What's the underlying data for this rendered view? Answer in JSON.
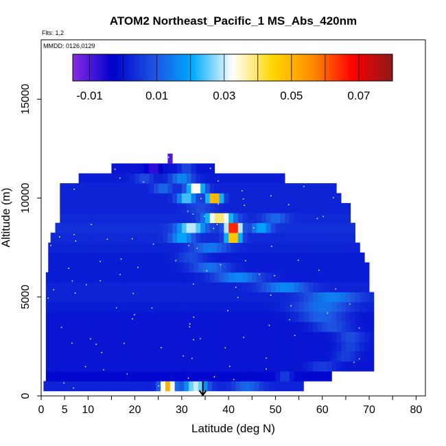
{
  "chart_data": {
    "type": "heatmap",
    "title": "ATOM2 Northeast_Pacific_1 MS_Abs_420nm",
    "subtitle_flights": "Flts: 1,2",
    "subtitle_dates": "MMDD: 0126,0129",
    "xlabel": "Latitude (deg N)",
    "ylabel": "Altitude (m)",
    "xlim": [
      0,
      82
    ],
    "ylim": [
      0,
      18000
    ],
    "x_ticks": [
      0,
      5,
      10,
      20,
      30,
      40,
      50,
      60,
      70,
      80
    ],
    "y_ticks": [
      0,
      5000,
      10000,
      15000
    ],
    "colorbar": {
      "range": [
        -0.015,
        0.08
      ],
      "tick_values": [
        -0.01,
        0.01,
        0.03,
        0.05,
        0.07
      ],
      "tick_labels": [
        "-0.01",
        "0.01",
        "0.03",
        "0.05",
        "0.07"
      ],
      "stops": [
        "#8a2be2",
        "#0000cd",
        "#1e50e0",
        "#00aaff",
        "#ffffff",
        "#ffd700",
        "#ff8c00",
        "#ff0000",
        "#8b1a1a"
      ]
    },
    "arrow_marker_latitude": 34.5,
    "altitude_bins_m": [
      500,
      1000,
      1500,
      2000,
      2500,
      3000,
      3500,
      4000,
      4500,
      5000,
      5500,
      6000,
      6500,
      7000,
      7500,
      8000,
      8500,
      9000,
      9500,
      10000,
      10500,
      11000,
      11500,
      12000
    ],
    "bins": [
      {
        "alt": 500,
        "lat_min": 0.5,
        "lat_max": 56,
        "base": 0.002,
        "features": [
          {
            "lat": 27,
            "value": 0.05,
            "width": 3
          },
          {
            "lat": 33,
            "value": 0.03,
            "width": 5
          },
          {
            "lat": 44,
            "value": 0.012,
            "width": 6
          }
        ]
      },
      {
        "alt": 1000,
        "lat_min": 1,
        "lat_max": 62,
        "base": -0.002,
        "features": [
          {
            "lat": 52,
            "value": 0.006,
            "width": 3
          }
        ]
      },
      {
        "alt": 1500,
        "lat_min": 1,
        "lat_max": 71,
        "base": 0.0,
        "features": [
          {
            "lat": 60,
            "value": 0.006,
            "width": 6
          }
        ]
      },
      {
        "alt": 2000,
        "lat_min": 1,
        "lat_max": 71,
        "base": 0.0,
        "features": [
          {
            "lat": 65,
            "value": 0.006,
            "width": 5
          }
        ]
      },
      {
        "alt": 2500,
        "lat_min": 1,
        "lat_max": 71,
        "base": 0.0,
        "features": [
          {
            "lat": 66,
            "value": 0.007,
            "width": 5
          }
        ]
      },
      {
        "alt": 3000,
        "lat_min": 1,
        "lat_max": 71,
        "base": 0.0,
        "features": [
          {
            "lat": 66,
            "value": 0.008,
            "width": 6
          }
        ]
      },
      {
        "alt": 3500,
        "lat_min": 1,
        "lat_max": 71,
        "base": 0.0,
        "features": [
          {
            "lat": 62,
            "value": 0.009,
            "width": 8
          }
        ]
      },
      {
        "alt": 4000,
        "lat_min": 1,
        "lat_max": 71,
        "base": 0.0,
        "features": [
          {
            "lat": 60,
            "value": 0.011,
            "width": 10
          }
        ]
      },
      {
        "alt": 4500,
        "lat_min": 1,
        "lat_max": 71,
        "base": 0.001,
        "features": [
          {
            "lat": 60,
            "value": 0.013,
            "width": 12
          }
        ]
      },
      {
        "alt": 5000,
        "lat_min": 1,
        "lat_max": 71,
        "base": 0.002,
        "features": [
          {
            "lat": 62,
            "value": 0.015,
            "width": 12
          }
        ]
      },
      {
        "alt": 5500,
        "lat_min": 1,
        "lat_max": 70,
        "base": 0.002,
        "features": [
          {
            "lat": 52,
            "value": 0.016,
            "width": 10
          }
        ]
      },
      {
        "alt": 6000,
        "lat_min": 1,
        "lat_max": 70,
        "base": 0.001,
        "features": [
          {
            "lat": 42,
            "value": 0.016,
            "width": 10
          }
        ]
      },
      {
        "alt": 6500,
        "lat_min": 1.5,
        "lat_max": 70,
        "base": 0.001,
        "features": [
          {
            "lat": 36,
            "value": 0.013,
            "width": 8
          }
        ]
      },
      {
        "alt": 7000,
        "lat_min": 1.5,
        "lat_max": 69,
        "base": 0.001,
        "features": [
          {
            "lat": 32,
            "value": 0.008,
            "width": 6
          }
        ]
      },
      {
        "alt": 7500,
        "lat_min": 1.5,
        "lat_max": 68,
        "base": 0.002,
        "features": [
          {
            "lat": 36,
            "value": 0.014,
            "width": 8
          }
        ]
      },
      {
        "alt": 8000,
        "lat_min": 2,
        "lat_max": 67,
        "base": 0.003,
        "features": [
          {
            "lat": 41,
            "value": 0.052,
            "width": 3
          },
          {
            "lat": 30,
            "value": 0.02,
            "width": 5
          }
        ]
      },
      {
        "alt": 8500,
        "lat_min": 3,
        "lat_max": 67,
        "base": 0.004,
        "features": [
          {
            "lat": 41,
            "value": 0.072,
            "width": 3
          },
          {
            "lat": 32,
            "value": 0.03,
            "width": 6
          },
          {
            "lat": 47,
            "value": 0.02,
            "width": 4
          }
        ]
      },
      {
        "alt": 9000,
        "lat_min": 4,
        "lat_max": 66,
        "base": 0.003,
        "features": [
          {
            "lat": 38,
            "value": 0.04,
            "width": 6
          },
          {
            "lat": 50,
            "value": 0.012,
            "width": 5
          }
        ]
      },
      {
        "alt": 9500,
        "lat_min": 4,
        "lat_max": 66,
        "base": 0.002,
        "features": [
          {
            "lat": 34,
            "value": 0.008,
            "width": 6
          }
        ]
      },
      {
        "alt": 10000,
        "lat_min": 4,
        "lat_max": 64,
        "base": 0.002,
        "features": [
          {
            "lat": 37,
            "value": 0.055,
            "width": 3
          },
          {
            "lat": 31,
            "value": 0.025,
            "width": 4
          }
        ]
      },
      {
        "alt": 10500,
        "lat_min": 4,
        "lat_max": 63,
        "base": 0.002,
        "features": [
          {
            "lat": 33,
            "value": 0.035,
            "width": 4
          },
          {
            "lat": 26,
            "value": 0.012,
            "width": 4
          }
        ]
      },
      {
        "alt": 11000,
        "lat_min": 8,
        "lat_max": 52,
        "base": 0.001,
        "features": [
          {
            "lat": 30,
            "value": 0.016,
            "width": 5
          },
          {
            "lat": 22,
            "value": 0.008,
            "width": 4
          }
        ]
      },
      {
        "alt": 11500,
        "lat_min": 15,
        "lat_max": 37,
        "base": 0.0,
        "features": [
          {
            "lat": 24,
            "value": -0.008,
            "width": 3
          },
          {
            "lat": 31,
            "value": 0.008,
            "width": 3
          }
        ]
      },
      {
        "alt": 12000,
        "lat_min": 27,
        "lat_max": 28,
        "base": -0.01,
        "features": []
      }
    ]
  }
}
